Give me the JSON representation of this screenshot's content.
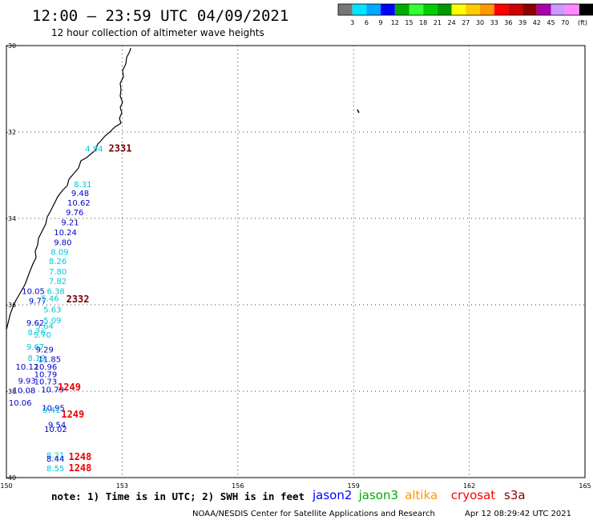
{
  "header": {
    "title": "12:00 – 23:59 UTC 04/09/2021",
    "subtitle": "12 hour collection of altimeter wave heights"
  },
  "legend": {
    "unit": "(ft)",
    "swatches": [
      {
        "label": "",
        "color": "#777777"
      },
      {
        "label": "3",
        "color": "#00e4ff"
      },
      {
        "label": "6",
        "color": "#00a8ff"
      },
      {
        "label": "9",
        "color": "#0000ff"
      },
      {
        "label": "12",
        "color": "#00aa00"
      },
      {
        "label": "15",
        "color": "#33ff33"
      },
      {
        "label": "18",
        "color": "#00cc00"
      },
      {
        "label": "21",
        "color": "#009900"
      },
      {
        "label": "24",
        "color": "#ffff00"
      },
      {
        "label": "27",
        "color": "#ffcc00"
      },
      {
        "label": "30",
        "color": "#ff9900"
      },
      {
        "label": "33",
        "color": "#ff0000"
      },
      {
        "label": "36",
        "color": "#cc0000"
      },
      {
        "label": "39",
        "color": "#880000"
      },
      {
        "label": "42",
        "color": "#aa00aa"
      },
      {
        "label": "45",
        "color": "#cc99ff"
      },
      {
        "label": "70",
        "color": "#ff88ff"
      },
      {
        "label": "",
        "color": "#000000"
      }
    ]
  },
  "map": {
    "x_ticks": [
      "150",
      "153",
      "156",
      "159",
      "162",
      "165"
    ],
    "y_ticks": [
      "-30",
      "-32",
      "-34",
      "-36",
      "-38",
      "-40"
    ],
    "lon_range": [
      150,
      165
    ],
    "lat_range": [
      -30,
      -40
    ]
  },
  "observations": [
    {
      "text": "4.94",
      "lon": 152.04,
      "lat": -32.45,
      "color": "#00c8d8"
    },
    {
      "text": "8.31",
      "lon": 151.75,
      "lat": -33.28,
      "color": "#00c8d8"
    },
    {
      "text": "9.48",
      "lon": 151.68,
      "lat": -33.48,
      "color": "#0000cc"
    },
    {
      "text": "10.62",
      "lon": 151.58,
      "lat": -33.7,
      "color": "#0000cc"
    },
    {
      "text": "9.76",
      "lon": 151.54,
      "lat": -33.93,
      "color": "#0000cc"
    },
    {
      "text": "9.21",
      "lon": 151.42,
      "lat": -34.16,
      "color": "#0000cc"
    },
    {
      "text": "10.24",
      "lon": 151.23,
      "lat": -34.39,
      "color": "#0000cc"
    },
    {
      "text": "9.80",
      "lon": 151.23,
      "lat": -34.62,
      "color": "#0000cc"
    },
    {
      "text": "8.09",
      "lon": 151.15,
      "lat": -34.84,
      "color": "#00c8d8"
    },
    {
      "text": "8.26",
      "lon": 151.1,
      "lat": -35.06,
      "color": "#00c8d8"
    },
    {
      "text": "7.80",
      "lon": 151.1,
      "lat": -35.3,
      "color": "#00c8d8"
    },
    {
      "text": "7.82",
      "lon": 151.1,
      "lat": -35.52,
      "color": "#00c8d8"
    },
    {
      "text": "10.05",
      "lon": 150.4,
      "lat": -35.75,
      "color": "#0000cc"
    },
    {
      "text": "6.38",
      "lon": 151.05,
      "lat": -35.75,
      "color": "#00c8d8"
    },
    {
      "text": "9.77",
      "lon": 150.58,
      "lat": -35.97,
      "color": "#0000cc"
    },
    {
      "text": "5.46",
      "lon": 150.9,
      "lat": -35.92,
      "color": "#00c8d8"
    },
    {
      "text": "5.63",
      "lon": 150.96,
      "lat": -36.18,
      "color": "#00c8d8"
    },
    {
      "text": "5.09",
      "lon": 150.96,
      "lat": -36.43,
      "color": "#00c8d8"
    },
    {
      "text": "9.62",
      "lon": 150.52,
      "lat": -36.48,
      "color": "#0000cc"
    },
    {
      "text": "5.64",
      "lon": 150.76,
      "lat": -36.56,
      "color": "#00c8d8"
    },
    {
      "text": "8.76",
      "lon": 150.55,
      "lat": -36.7,
      "color": "#00c8d8"
    },
    {
      "text": "5.70",
      "lon": 150.7,
      "lat": -36.76,
      "color": "#00c8d8"
    },
    {
      "text": "9.67",
      "lon": 150.52,
      "lat": -37.04,
      "color": "#00c8d8"
    },
    {
      "text": "9.29",
      "lon": 150.76,
      "lat": -37.1,
      "color": "#0000cc"
    },
    {
      "text": "8.19",
      "lon": 150.55,
      "lat": -37.3,
      "color": "#00c8d8"
    },
    {
      "text": "11.85",
      "lon": 150.82,
      "lat": -37.32,
      "color": "#0000cc"
    },
    {
      "text": "10.12",
      "lon": 150.24,
      "lat": -37.5,
      "color": "#0000cc"
    },
    {
      "text": "10.96",
      "lon": 150.72,
      "lat": -37.5,
      "color": "#0000cc"
    },
    {
      "text": "10.79",
      "lon": 150.72,
      "lat": -37.68,
      "color": "#0000cc"
    },
    {
      "text": "9.93",
      "lon": 150.3,
      "lat": -37.82,
      "color": "#0000cc"
    },
    {
      "text": "10.73",
      "lon": 150.72,
      "lat": -37.84,
      "color": "#0000cc"
    },
    {
      "text": "10.08",
      "lon": 150.16,
      "lat": -38.05,
      "color": "#0000cc"
    },
    {
      "text": "10.79",
      "lon": 150.9,
      "lat": -38.03,
      "color": "#0000cc"
    },
    {
      "text": "10.06",
      "lon": 150.06,
      "lat": -38.33,
      "color": "#0000cc"
    },
    {
      "text": "10.95",
      "lon": 150.92,
      "lat": -38.45,
      "color": "#0000cc"
    },
    {
      "text": "9.41",
      "lon": 150.94,
      "lat": -38.5,
      "color": "#00c8d8"
    },
    {
      "text": "9.54",
      "lon": 151.08,
      "lat": -38.84,
      "color": "#0000cc"
    },
    {
      "text": "10.02",
      "lon": 150.98,
      "lat": -38.94,
      "color": "#0000cc"
    },
    {
      "text": "8.21",
      "lon": 151.04,
      "lat": -39.55,
      "color": "#00c8d8"
    },
    {
      "text": "8.44",
      "lon": 151.04,
      "lat": -39.63,
      "color": "#0000cc"
    },
    {
      "text": "8.55",
      "lon": 151.04,
      "lat": -39.85,
      "color": "#00c8d8"
    }
  ],
  "time_labels": [
    {
      "text": "2331",
      "lon": 152.65,
      "lat": -32.45,
      "color": "#770000"
    },
    {
      "text": "2332",
      "lon": 151.55,
      "lat": -35.94,
      "color": "#770000"
    },
    {
      "text": "1249",
      "lon": 151.33,
      "lat": -37.98,
      "color": "#ee0000"
    },
    {
      "text": "1249",
      "lon": 151.42,
      "lat": -38.61,
      "color": "#ee0000"
    },
    {
      "text": "1248",
      "lon": 151.61,
      "lat": -39.59,
      "color": "#ee0000"
    },
    {
      "text": "1248",
      "lon": 151.61,
      "lat": -39.85,
      "color": "#ee0000"
    }
  ],
  "footer": {
    "note": "note: 1) Time is in UTC; 2) SWH is in feet",
    "satellites": [
      {
        "name": "jason2",
        "color": "#0000ff"
      },
      {
        "name": "jason3",
        "color": "#00aa00"
      },
      {
        "name": "altika",
        "color": "#ff9900"
      },
      {
        "name": "cryosat",
        "color": "#ff0000"
      },
      {
        "name": "s3a",
        "color": "#880000"
      }
    ],
    "credit": "NOAA/NESDIS Center for Satellite Applications and Research",
    "generated": "Apr 12 08:29:42 UTC 2021"
  }
}
